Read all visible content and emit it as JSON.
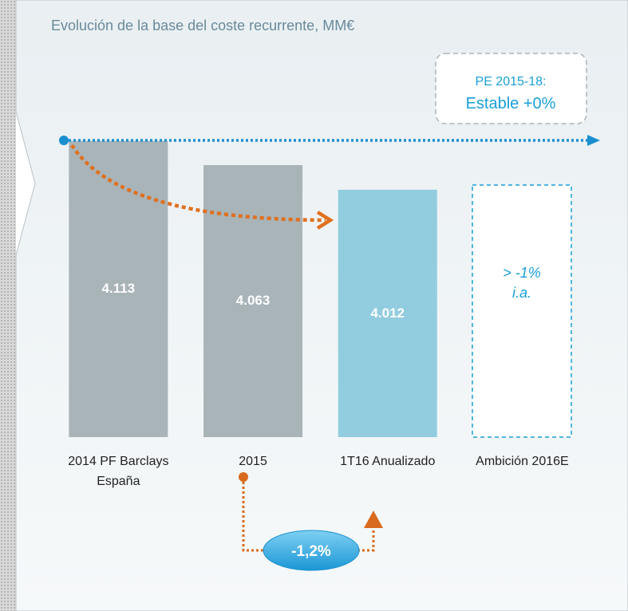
{
  "chart_data": {
    "type": "bar",
    "title": "Evolución de la base del coste recurrente, MM€",
    "categories": [
      "2014 PF Barclays\nEspaña",
      "2015",
      "1T16 Anualizado",
      "Ambición 2016E"
    ],
    "values": [
      4113,
      4063,
      4012,
      null
    ],
    "value_labels": [
      "4.113",
      "4.063",
      "4.012",
      null
    ],
    "colors": [
      "#a9b4b9",
      "#a9b4b9",
      "#92cddf",
      null
    ],
    "target_label": "> -1%\ni.a.",
    "plan_label": "PE 2015-18:",
    "plan_value": "Estable +0%",
    "change_label": "-1,2%",
    "ylim": [
      3500,
      4200
    ]
  }
}
